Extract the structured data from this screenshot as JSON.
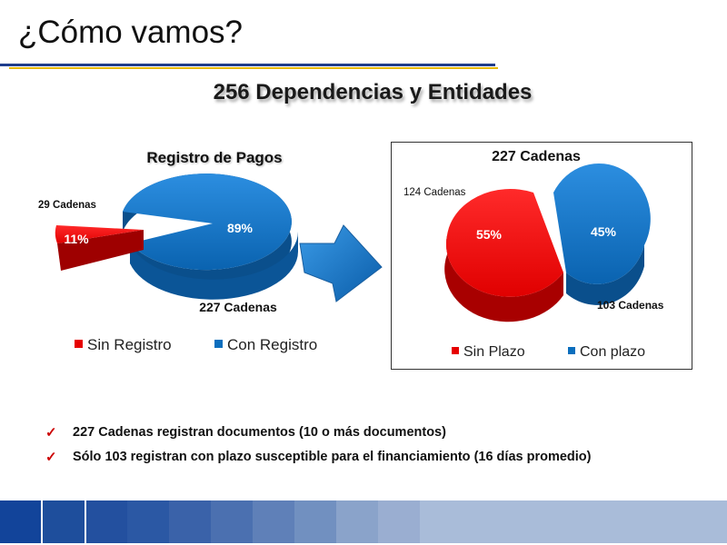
{
  "slide": {
    "title": "¿Cómo vamos?",
    "subtitle": "256 Dependencias y Entidades",
    "bullets": [
      "227 Cadenas registran documentos (10 o más documentos)",
      "Sólo 103 registran con plazo susceptible para el financiamiento (16 días promedio)"
    ],
    "bullet_icon": "check-icon",
    "footer_colors": [
      "#12449a",
      "#1e4e9c",
      "#23509f",
      "#2b58a4",
      "#3a62a9",
      "#4b70b0",
      "#5f80b8",
      "#7190c0",
      "#8aa3ca",
      "#9aaed1",
      "#a9bcd9"
    ]
  },
  "chart_data": [
    {
      "type": "pie",
      "title": "Registro de Pagos",
      "series": [
        {
          "name": "Sin Registro",
          "value": 11,
          "label": "11%",
          "color": "#e60000",
          "annotation": "29 Cadenas"
        },
        {
          "name": "Con Registro",
          "value": 89,
          "label": "89%",
          "color": "#0a6ebd",
          "annotation": "227 Cadenas"
        }
      ],
      "legend": "bottom"
    },
    {
      "type": "pie",
      "title": "227 Cadenas",
      "series": [
        {
          "name": "Sin Plazo",
          "value": 55,
          "label": "55%",
          "color": "#e60000",
          "annotation": "124 Cadenas"
        },
        {
          "name": "Con plazo",
          "value": 45,
          "label": "45%",
          "color": "#0a6ebd",
          "annotation": "103 Cadenas"
        }
      ],
      "legend": "bottom"
    }
  ]
}
